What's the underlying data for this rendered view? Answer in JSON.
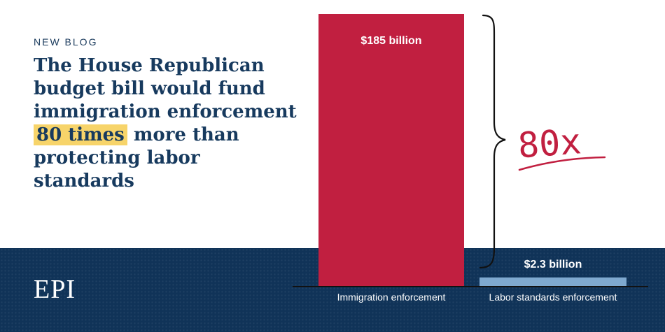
{
  "kicker": "NEW BLOG",
  "headline": {
    "before": "The House Republican budget bill would fund immigration enforcement ",
    "highlight": "80 times",
    "after": " more than protecting labor standards"
  },
  "logo": "EPI",
  "annotation": "80x",
  "colors": {
    "navy": "#103358",
    "bar_primary": "#c11f40",
    "bar_secondary": "#7fa9cf",
    "highlight": "#f7d46a"
  },
  "chart_data": {
    "type": "bar",
    "categories": [
      "Immigration enforcement",
      "Labor standards enforcement"
    ],
    "values": [
      185,
      2.3
    ],
    "value_labels": [
      "$185 billion",
      "$2.3 billion"
    ],
    "unit": "billion USD",
    "ylim": [
      0,
      185
    ],
    "grid": false,
    "legend": "none"
  }
}
